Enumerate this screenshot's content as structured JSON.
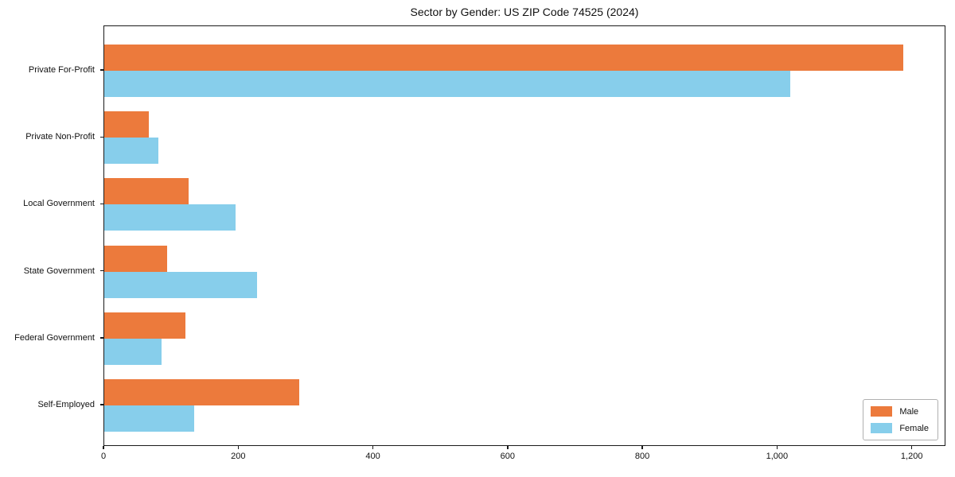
{
  "title": "Sector by Gender: US ZIP Code 74525 (2024)",
  "chart_data": {
    "type": "bar",
    "orientation": "horizontal",
    "title": "Sector by Gender: US ZIP Code 74525 (2024)",
    "xlabel": "",
    "ylabel": "",
    "categories": [
      "Private For-Profit",
      "Private Non-Profit",
      "Local Government",
      "State Government",
      "Federal Government",
      "Self-Employed"
    ],
    "series": [
      {
        "name": "Male",
        "color": "#EC7A3C",
        "values": [
          1189,
          66,
          125,
          94,
          121,
          290
        ]
      },
      {
        "name": "Female",
        "color": "#87CEEB",
        "values": [
          1020,
          80,
          195,
          227,
          85,
          134
        ]
      }
    ],
    "xlim": [
      0,
      1250
    ],
    "xticks": [
      0,
      200,
      400,
      600,
      800,
      1000,
      1200
    ],
    "xtick_labels": [
      "0",
      "200",
      "400",
      "600",
      "800",
      "1,000",
      "1,200"
    ],
    "grid": false,
    "legend_position": "lower right"
  }
}
